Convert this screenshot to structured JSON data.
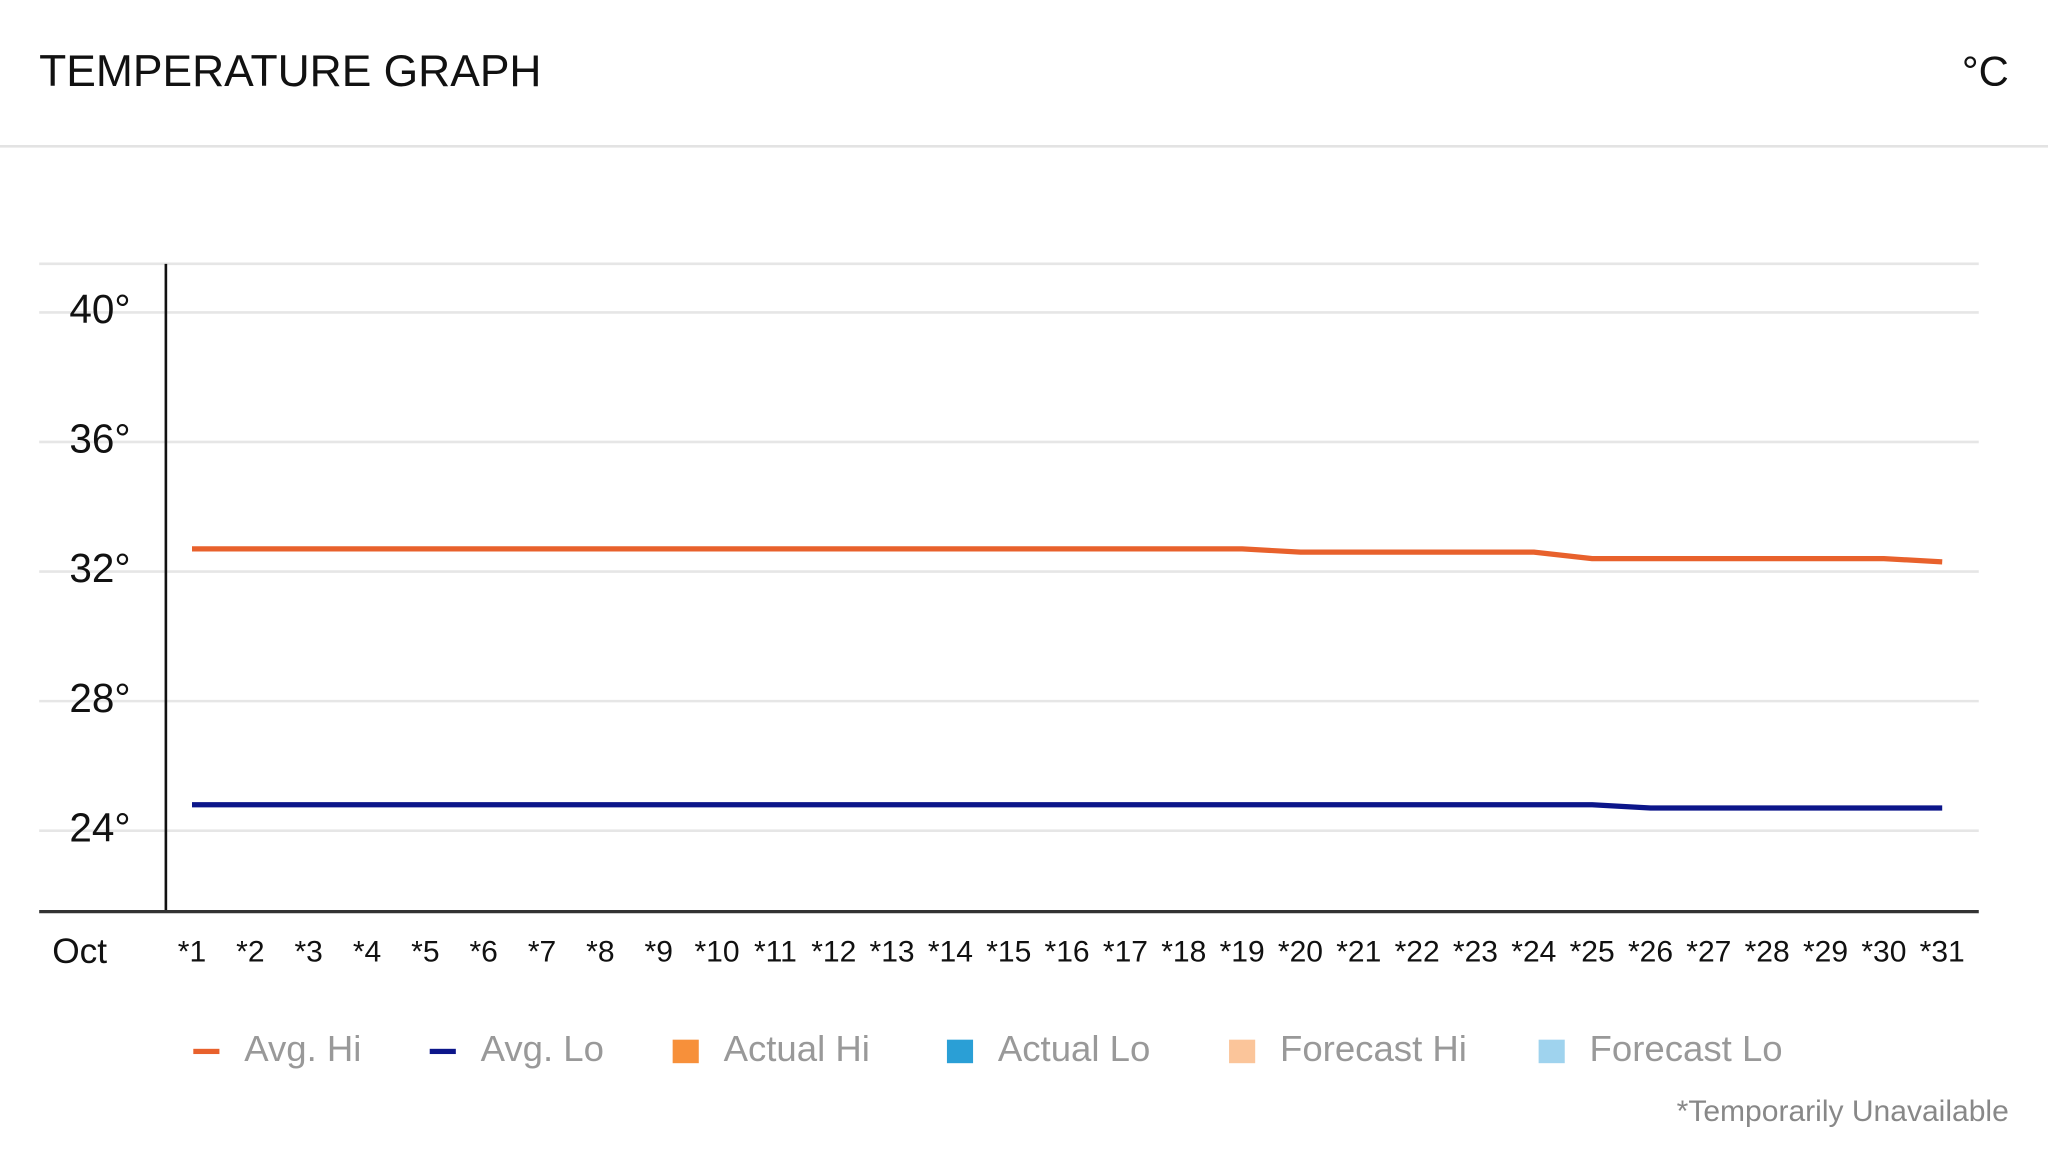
{
  "header": {
    "title": "TEMPERATURE GRAPH",
    "unit": "°C"
  },
  "chart_data": {
    "type": "line",
    "x_label": "Oct",
    "categories": [
      "*1",
      "*2",
      "*3",
      "*4",
      "*5",
      "*6",
      "*7",
      "*8",
      "*9",
      "*10",
      "*11",
      "*12",
      "*13",
      "*14",
      "*15",
      "*16",
      "*17",
      "*18",
      "*19",
      "*20",
      "*21",
      "*22",
      "*23",
      "*24",
      "*25",
      "*26",
      "*27",
      "*28",
      "*29",
      "*30",
      "*31"
    ],
    "series": [
      {
        "name": "Avg. Hi",
        "color": "#e8612c",
        "marker": "line",
        "values": [
          32.7,
          32.7,
          32.7,
          32.7,
          32.7,
          32.7,
          32.7,
          32.7,
          32.7,
          32.7,
          32.7,
          32.7,
          32.7,
          32.7,
          32.7,
          32.7,
          32.7,
          32.7,
          32.7,
          32.6,
          32.6,
          32.6,
          32.6,
          32.6,
          32.4,
          32.4,
          32.4,
          32.4,
          32.4,
          32.4,
          32.3
        ]
      },
      {
        "name": "Avg. Lo",
        "color": "#0c168a",
        "marker": "line",
        "values": [
          24.8,
          24.8,
          24.8,
          24.8,
          24.8,
          24.8,
          24.8,
          24.8,
          24.8,
          24.8,
          24.8,
          24.8,
          24.8,
          24.8,
          24.8,
          24.8,
          24.8,
          24.8,
          24.8,
          24.8,
          24.8,
          24.8,
          24.8,
          24.8,
          24.8,
          24.7,
          24.7,
          24.7,
          24.7,
          24.7,
          24.7
        ]
      },
      {
        "name": "Actual Hi",
        "color": "#f7903a",
        "marker": "square"
      },
      {
        "name": "Actual Lo",
        "color": "#2a9fd6",
        "marker": "square"
      },
      {
        "name": "Forecast Hi",
        "color": "#fbc59a",
        "marker": "square"
      },
      {
        "name": "Forecast Lo",
        "color": "#9fd3ee",
        "marker": "square"
      }
    ],
    "ylim": [
      21.5,
      41.5
    ],
    "yticks": [
      {
        "value": 24,
        "label": "24°"
      },
      {
        "value": 28,
        "label": "28°"
      },
      {
        "value": 32,
        "label": "32°"
      },
      {
        "value": 36,
        "label": "36°"
      },
      {
        "value": 40,
        "label": "40°"
      }
    ],
    "grid": true,
    "footnote": "*Temporarily Unavailable"
  }
}
